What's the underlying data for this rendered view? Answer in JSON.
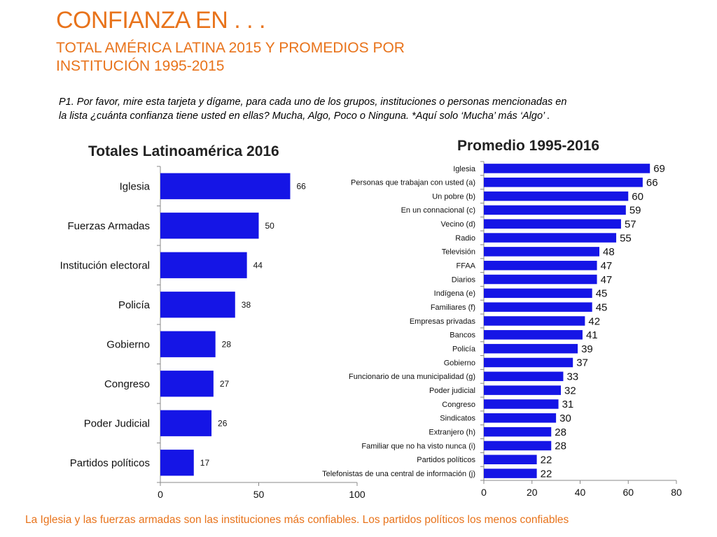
{
  "header": {
    "title": "CONFIANZA EN . . .",
    "subtitle_line1": "TOTAL AMÉRICA LATINA 2015 Y PROMEDIOS POR",
    "subtitle_line2": "INSTITUCIÓN 1995-2015"
  },
  "question": {
    "line1": "P1. Por favor, mire esta tarjeta y dígame, para cada uno de los grupos, instituciones o personas mencionadas en",
    "line2": "la lista ¿cuánta confianza tiene usted en ellas? Mucha, Algo, Poco o Ninguna.  *Aquí solo ‘Mucha’ más ‘Algo’ ."
  },
  "footer": {
    "text": "La Iglesia y las fuerzas armadas son las instituciones más confiables. Los partidos políticos los menos confiables"
  },
  "colors": {
    "bar": "#1515E6",
    "accent": "#E8731B",
    "axis": "#888888"
  },
  "chart_data": [
    {
      "type": "bar",
      "orientation": "horizontal",
      "title": "Totales Latinoamérica 2016",
      "categories": [
        "Iglesia",
        "Fuerzas Armadas",
        "Institución electoral",
        "Policía",
        "Gobierno",
        "Congreso",
        "Poder Judicial",
        "Partidos políticos"
      ],
      "values": [
        66,
        50,
        44,
        38,
        28,
        27,
        26,
        17
      ],
      "xlim": [
        0,
        100
      ],
      "xticks": [
        0,
        50,
        100
      ],
      "xlabel": "",
      "ylabel": ""
    },
    {
      "type": "bar",
      "orientation": "horizontal",
      "title": "Promedio 1995-2016",
      "categories": [
        "Iglesia",
        "Personas que trabajan con usted (a)",
        "Un pobre (b)",
        "En un connacional (c)",
        "Vecino (d)",
        "Radio",
        "Televisión",
        "FFAA",
        "Diarios",
        "Indígena (e)",
        "Familiares (f)",
        "Empresas privadas",
        "Bancos",
        "Policía",
        "Gobierno",
        "Funcionario de una municipalidad (g)",
        "Poder judicial",
        "Congreso",
        "Sindicatos",
        "Extranjero (h)",
        "Familiar que no ha visto nunca (i)",
        "Partidos políticos",
        "Telefonistas de una central de información (j)"
      ],
      "values": [
        69,
        66,
        60,
        59,
        57,
        55,
        48,
        47,
        47,
        45,
        45,
        42,
        41,
        39,
        37,
        33,
        32,
        31,
        30,
        28,
        28,
        22,
        22
      ],
      "xlim": [
        0,
        80
      ],
      "xticks": [
        0,
        20,
        40,
        60,
        80
      ],
      "xlabel": "",
      "ylabel": ""
    }
  ]
}
